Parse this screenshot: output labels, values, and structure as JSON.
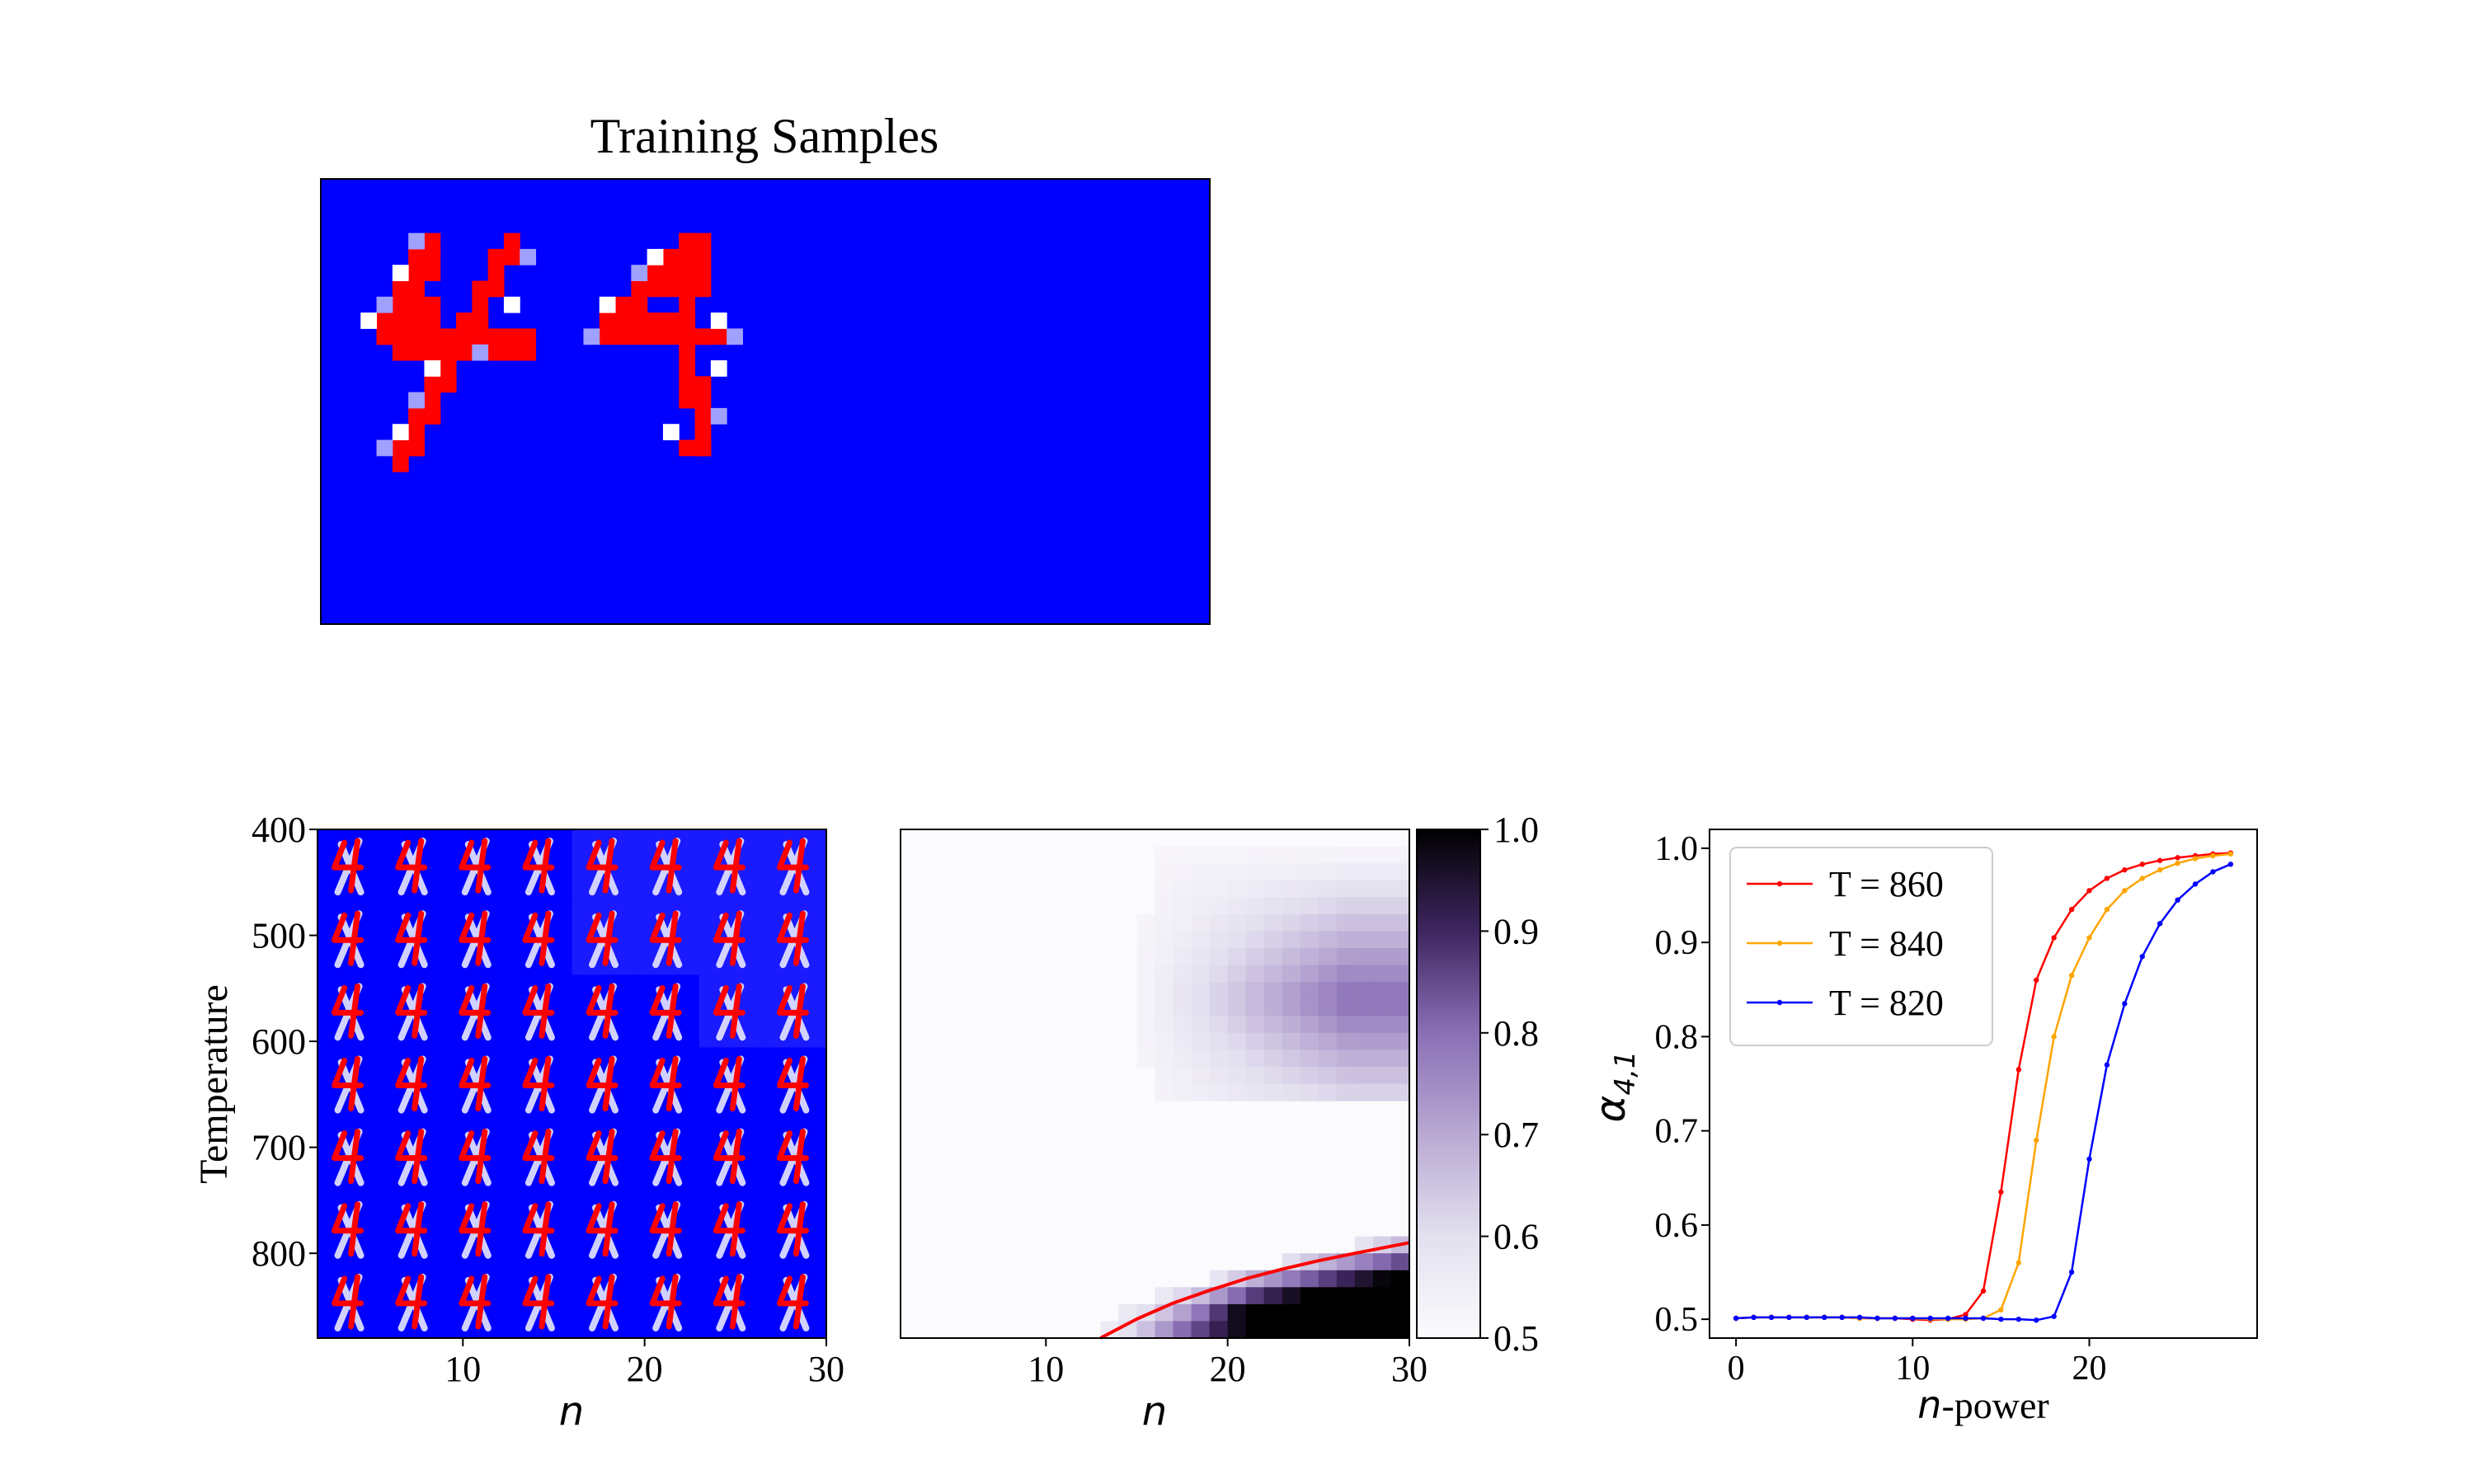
{
  "training_panel": {
    "title": "Training Samples",
    "background_color": "#0000ff",
    "digit_color": "#ff0000",
    "digits": [
      "4",
      "4"
    ]
  },
  "chart_data": [
    {
      "type": "heatmap",
      "name": "generated-samples-grid",
      "description_color": {
        "background": "#0000ff",
        "digit": "#ff0000",
        "highlight": "#ffffff"
      },
      "x": [
        4,
        8,
        12,
        16,
        20,
        24,
        28,
        31
      ],
      "y": [
        400,
        460,
        520,
        580,
        640,
        700,
        760
      ],
      "xlim": [
        2,
        30
      ],
      "ylim": [
        880,
        400
      ],
      "xticks": [
        10,
        20,
        30
      ],
      "yticks": [
        400,
        500,
        600,
        700,
        800
      ],
      "xlabel": "n",
      "ylabel": "Temperature",
      "faded_cells_by_row": [
        4,
        4,
        2,
        0,
        0,
        0,
        0
      ]
    },
    {
      "type": "heatmap",
      "name": "alpha-heatmap",
      "xlim": [
        2,
        30
      ],
      "ylim": [
        880,
        400
      ],
      "xticks": [
        10,
        20,
        30
      ],
      "xlabel": "n",
      "colorbar": {
        "min": 0.5,
        "max": 1.0,
        "ticks": [
          0.5,
          0.6,
          0.7,
          0.8,
          0.9,
          1.0
        ],
        "colormap": "Purples-to-black"
      },
      "boundary_curve": {
        "color": "#ff0000",
        "x": [
          13,
          15,
          17,
          19,
          21,
          23,
          25,
          27,
          30
        ],
        "y": [
          880,
          862,
          847,
          835,
          824,
          815,
          807,
          800,
          790
        ]
      }
    },
    {
      "type": "line",
      "name": "alpha-vs-n-power",
      "x": [
        0,
        1,
        2,
        3,
        4,
        5,
        6,
        7,
        8,
        9,
        10,
        11,
        12,
        13,
        14,
        15,
        16,
        17,
        18,
        19,
        20,
        21,
        22,
        23,
        24,
        25,
        26,
        27,
        28
      ],
      "series": [
        {
          "name": "T = 860",
          "color": "#ff0000",
          "values": [
            0.501,
            0.502,
            0.502,
            0.502,
            0.502,
            0.502,
            0.502,
            0.501,
            0.501,
            0.501,
            0.5,
            0.499,
            0.5,
            0.505,
            0.53,
            0.635,
            0.765,
            0.86,
            0.905,
            0.935,
            0.955,
            0.968,
            0.977,
            0.983,
            0.987,
            0.99,
            0.992,
            0.994,
            0.995
          ]
        },
        {
          "name": "T = 840",
          "color": "#ffa500",
          "values": [
            0.501,
            0.502,
            0.502,
            0.502,
            0.502,
            0.502,
            0.502,
            0.501,
            0.501,
            0.501,
            0.501,
            0.5,
            0.5,
            0.5,
            0.501,
            0.51,
            0.56,
            0.69,
            0.8,
            0.865,
            0.905,
            0.935,
            0.955,
            0.968,
            0.977,
            0.984,
            0.989,
            0.992,
            0.994
          ]
        },
        {
          "name": "T = 820",
          "color": "#0000ff",
          "values": [
            0.501,
            0.502,
            0.502,
            0.502,
            0.502,
            0.502,
            0.502,
            0.502,
            0.501,
            0.501,
            0.501,
            0.501,
            0.501,
            0.501,
            0.501,
            0.5,
            0.5,
            0.499,
            0.503,
            0.55,
            0.67,
            0.77,
            0.835,
            0.885,
            0.92,
            0.945,
            0.962,
            0.975,
            0.983
          ]
        }
      ],
      "xlim": [
        -1.5,
        29.5
      ],
      "ylim": [
        0.48,
        1.02
      ],
      "xticks": [
        0,
        10,
        20
      ],
      "yticks": [
        0.5,
        0.6,
        0.7,
        0.8,
        0.9,
        1.0
      ],
      "xlabel_italic": "n",
      "xlabel_rest": "-power",
      "ylabel": "α",
      "ylabel_subscript": "4,1",
      "legend_position": "top-left"
    }
  ]
}
